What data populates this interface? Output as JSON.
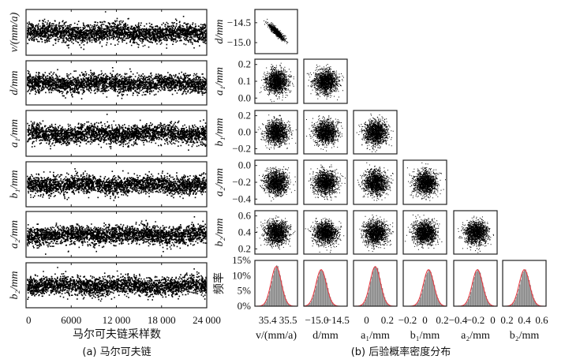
{
  "chart_data": [
    {
      "type": "line",
      "title": "(a) 马尔可夫链",
      "xlabel": "马尔可夫链采样数",
      "xlim": [
        0,
        24000
      ],
      "xticks": [
        "0",
        "6000",
        "12 000",
        "18 000",
        "24 000"
      ],
      "series": [
        {
          "name": "v/(mm/a)",
          "mean": 35.45,
          "sd": 0.02
        },
        {
          "name": "d/mm",
          "mean": -14.9,
          "sd": 0.1
        },
        {
          "name": "a1/mm",
          "mean": 0.1,
          "sd": 0.05
        },
        {
          "name": "b1/mm",
          "mean": 0.05,
          "sd": 0.05
        },
        {
          "name": "a2/mm",
          "mean": -0.2,
          "sd": 0.05
        },
        {
          "name": "b2/mm",
          "mean": 0.4,
          "sd": 0.05
        }
      ]
    },
    {
      "type": "scatter",
      "title": "(b) 后验概率密度分布",
      "params": [
        {
          "label": "v/(mm/a)",
          "mean": 35.45,
          "sd": 0.02,
          "lim": [
            35.35,
            35.55
          ],
          "xticks": [
            "35.4",
            "35.5"
          ],
          "peak_pct": 13
        },
        {
          "label": "d/mm",
          "mean": -14.9,
          "sd": 0.1,
          "lim": [
            -15.3,
            -14.3
          ],
          "xticks": [
            "−15.0",
            "−14.5"
          ],
          "yticks": [
            "−14.5",
            "−15.0"
          ],
          "peak_pct": 12
        },
        {
          "label": "a₁/mm",
          "mean": 0.1,
          "sd": 0.05,
          "lim": [
            -0.1,
            0.3
          ],
          "xticks": [
            "0",
            "0.2"
          ],
          "yticks": [
            "0.2",
            "0.1",
            "0.0"
          ],
          "peak_pct": 13
        },
        {
          "label": "b₁/mm",
          "mean": 0.05,
          "sd": 0.05,
          "lim": [
            -0.3,
            0.3
          ],
          "xticks": [
            "−0.2",
            "0",
            "0.2"
          ],
          "yticks": [
            "0.2",
            "0.0",
            "−0.2"
          ],
          "peak_pct": 12
        },
        {
          "label": "a₂/mm",
          "mean": -0.2,
          "sd": 0.05,
          "lim": [
            -0.5,
            0.05
          ],
          "xticks": [
            "−0.4",
            "−0.2",
            "0"
          ],
          "yticks": [
            "0.0",
            "−0.2",
            "−0.4"
          ],
          "peak_pct": 12
        },
        {
          "label": "b₂/mm",
          "mean": 0.4,
          "sd": 0.05,
          "lim": [
            0.15,
            0.65
          ],
          "xticks": [
            "0.2",
            "0.4",
            "0.6"
          ],
          "yticks": [
            "0.6",
            "0.4",
            "0.2"
          ],
          "peak_pct": 12
        }
      ],
      "hist_ylabel": "频率",
      "hist_yticks": [
        "15%",
        "10%",
        "5%",
        "0%"
      ],
      "hist_ylim": [
        0,
        15
      ],
      "correlation_v_d": -0.9,
      "colors": {
        "points": "#000000",
        "bars": "#888888",
        "fit": "#e8333c"
      }
    }
  ]
}
